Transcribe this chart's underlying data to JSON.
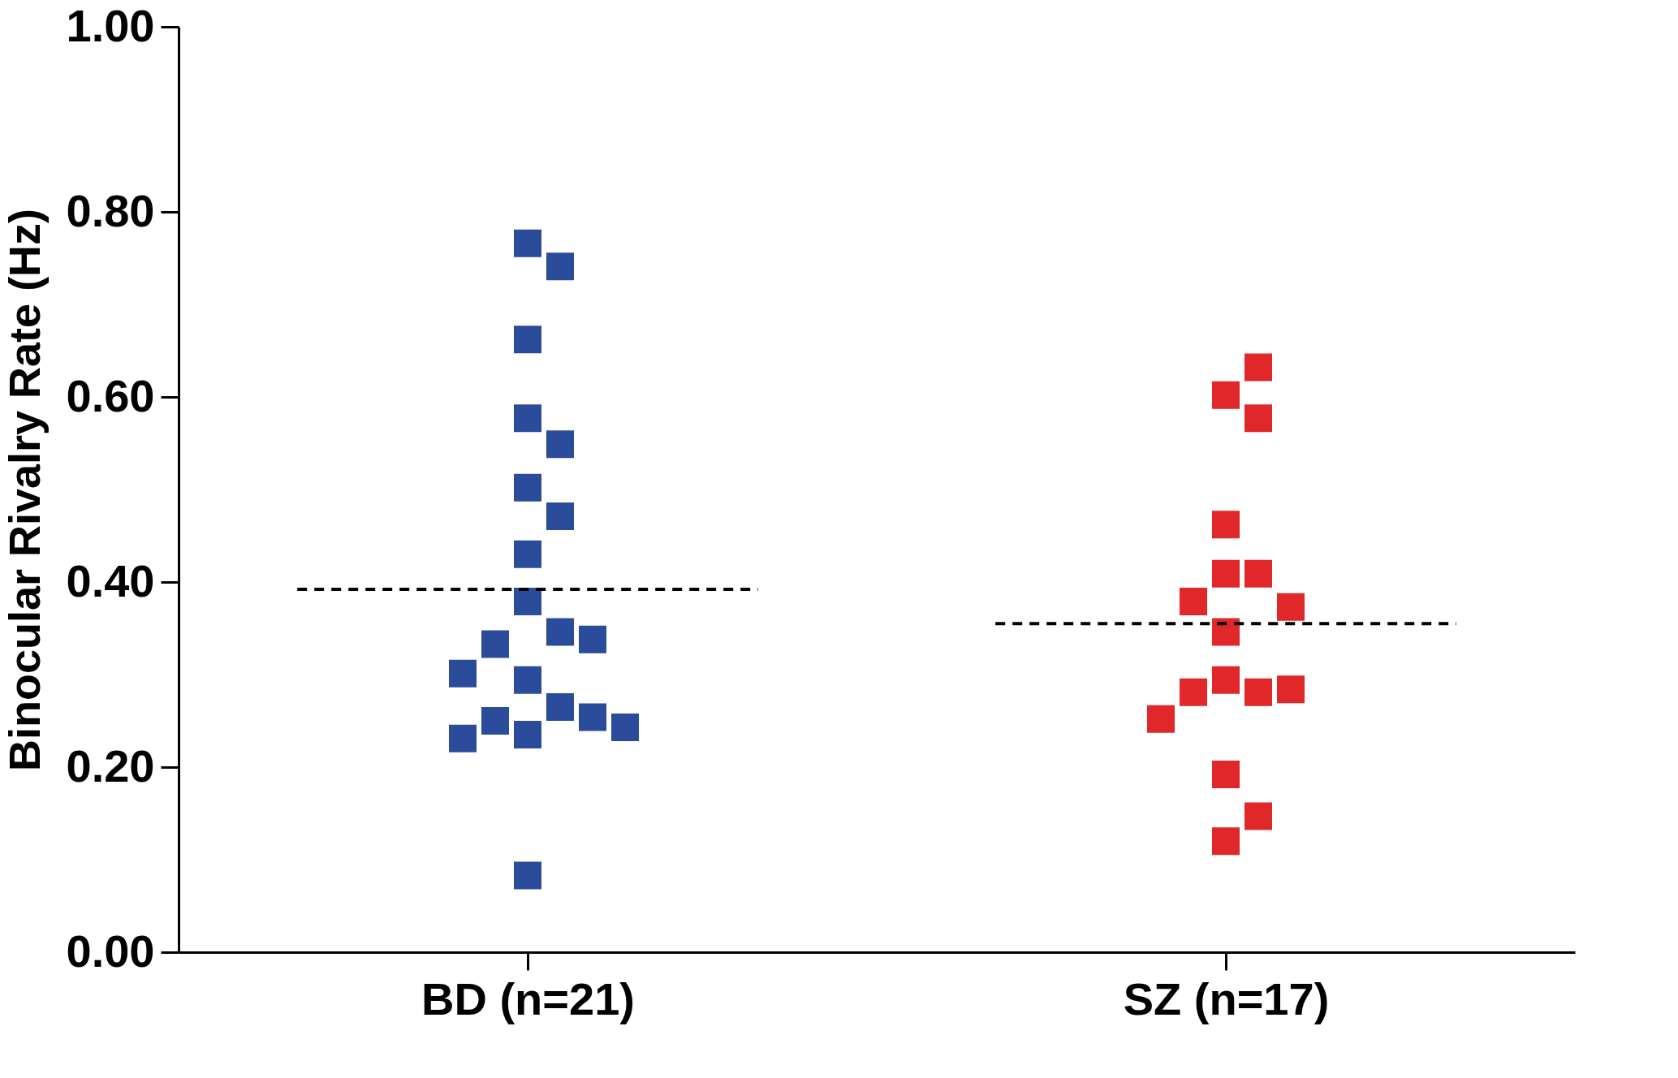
{
  "chart_data": {
    "type": "scatter",
    "ylabel": "Binocular Rivalry Rate (Hz)",
    "marker": "square",
    "grid": false,
    "categories": [
      "BD (n=21)",
      "SZ (n=17)"
    ],
    "ylim": [
      0,
      1
    ],
    "yticks": [
      {
        "value": 0,
        "label": "0.00"
      },
      {
        "value": 0.2,
        "label": "0.20"
      },
      {
        "value": 0.4,
        "label": "0.40"
      },
      {
        "value": 0.6,
        "label": "0.60"
      },
      {
        "value": 0.8,
        "label": "0.80"
      },
      {
        "value": 1,
        "label": "1.00"
      }
    ],
    "series": [
      {
        "color": "#2b4c9b",
        "x": [
          "BD (n=21)",
          "BD (n=21)",
          "BD (n=21)",
          "BD (n=21)",
          "BD (n=21)",
          "BD (n=21)",
          "BD (n=21)",
          "BD (n=21)",
          "BD (n=21)",
          "BD (n=21)",
          "BD (n=21)",
          "BD (n=21)",
          "BD (n=21)",
          "BD (n=21)",
          "BD (n=21)",
          "BD (n=21)",
          "BD (n=21)",
          "BD (n=21)",
          "BD (n=21)",
          "BD (n=21)",
          "BD (n=21)"
        ],
        "values": [
          0.766,
          0.741,
          0.662,
          0.577,
          0.549,
          0.502,
          0.471,
          0.43,
          0.379,
          0.346,
          0.333,
          0.338,
          0.294,
          0.301,
          0.265,
          0.25,
          0.254,
          0.235,
          0.231,
          0.243,
          0.083
        ]
      },
      {
        "color": "#e0282a",
        "x": [
          "SZ (n=17)",
          "SZ (n=17)",
          "SZ (n=17)",
          "SZ (n=17)",
          "SZ (n=17)",
          "SZ (n=17)",
          "SZ (n=17)",
          "SZ (n=17)",
          "SZ (n=17)",
          "SZ (n=17)",
          "SZ (n=17)",
          "SZ (n=17)",
          "SZ (n=17)",
          "SZ (n=17)",
          "SZ (n=17)",
          "SZ (n=17)",
          "SZ (n=17)"
        ],
        "values": [
          0.602,
          0.577,
          0.632,
          0.462,
          0.409,
          0.409,
          0.379,
          0.373,
          0.346,
          0.294,
          0.281,
          0.281,
          0.284,
          0.252,
          0.192,
          0.147,
          0.12
        ]
      }
    ],
    "ref_lines": [
      {
        "axis": "y",
        "value": 0.392,
        "color": "#000000",
        "line_style": "dashed"
      },
      {
        "axis": "y",
        "value": 0.355,
        "color": "#000000",
        "line_style": "dashed"
      }
    ]
  }
}
